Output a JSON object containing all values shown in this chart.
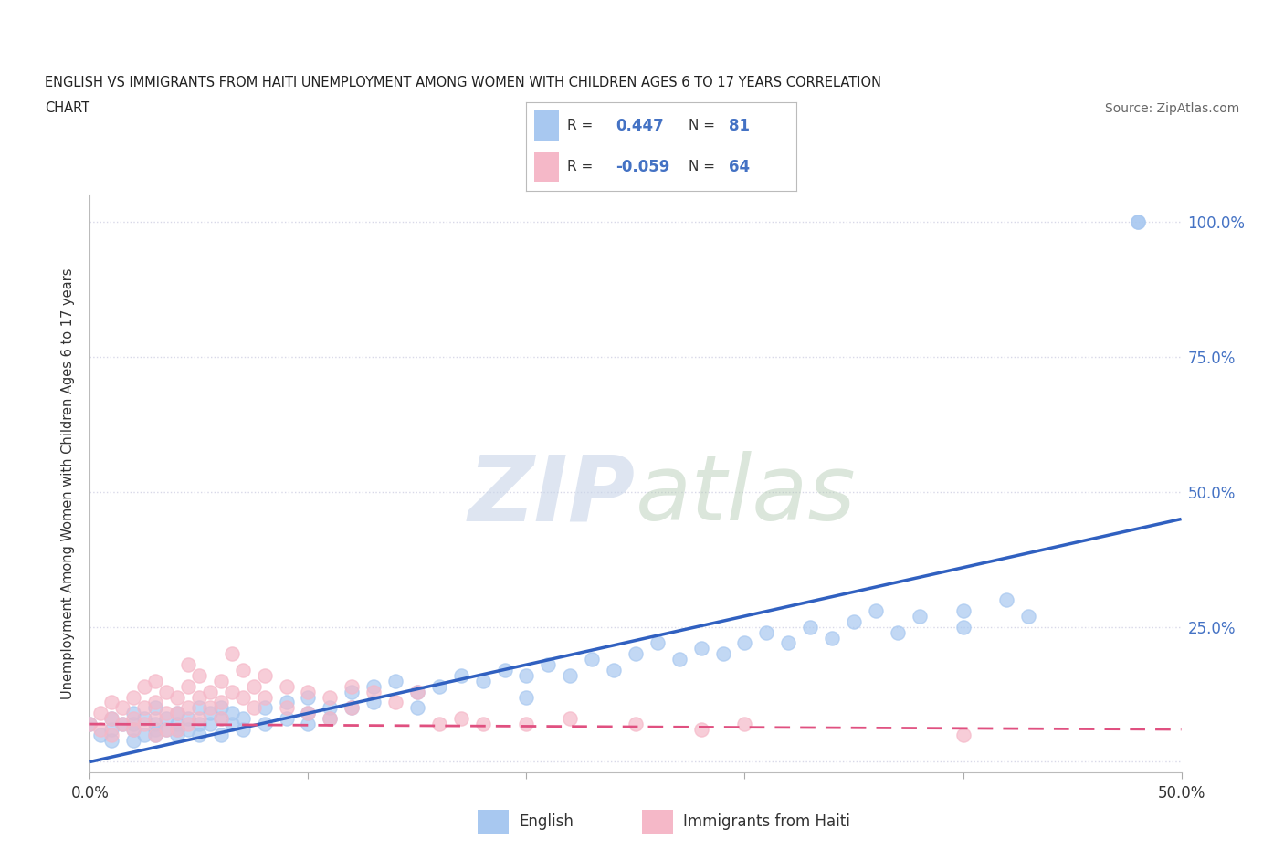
{
  "title_line1": "ENGLISH VS IMMIGRANTS FROM HAITI UNEMPLOYMENT AMONG WOMEN WITH CHILDREN AGES 6 TO 17 YEARS CORRELATION",
  "title_line2": "CHART",
  "source": "Source: ZipAtlas.com",
  "ylabel": "Unemployment Among Women with Children Ages 6 to 17 years",
  "xlim": [
    0.0,
    0.5
  ],
  "ylim": [
    -0.02,
    1.05
  ],
  "ytick_positions": [
    0.0,
    0.25,
    0.5,
    0.75,
    1.0
  ],
  "ytick_labels": [
    "",
    "25.0%",
    "50.0%",
    "75.0%",
    "100.0%"
  ],
  "english_color": "#a8c8f0",
  "haiti_color": "#f5b8c8",
  "english_line_color": "#3060c0",
  "haiti_line_color": "#e05080",
  "haiti_line_dash": [
    6,
    4
  ],
  "watermark_zip": "ZIP",
  "watermark_atlas": "atlas",
  "background_color": "#ffffff",
  "grid_color": "#d8d8e8",
  "english_scatter": [
    [
      0.0,
      0.07
    ],
    [
      0.005,
      0.05
    ],
    [
      0.01,
      0.06
    ],
    [
      0.01,
      0.08
    ],
    [
      0.01,
      0.04
    ],
    [
      0.015,
      0.07
    ],
    [
      0.02,
      0.09
    ],
    [
      0.02,
      0.06
    ],
    [
      0.02,
      0.04
    ],
    [
      0.02,
      0.07
    ],
    [
      0.025,
      0.08
    ],
    [
      0.025,
      0.05
    ],
    [
      0.03,
      0.1
    ],
    [
      0.03,
      0.07
    ],
    [
      0.03,
      0.05
    ],
    [
      0.03,
      0.06
    ],
    [
      0.035,
      0.08
    ],
    [
      0.035,
      0.06
    ],
    [
      0.04,
      0.09
    ],
    [
      0.04,
      0.07
    ],
    [
      0.04,
      0.05
    ],
    [
      0.04,
      0.06
    ],
    [
      0.045,
      0.08
    ],
    [
      0.045,
      0.06
    ],
    [
      0.05,
      0.1
    ],
    [
      0.05,
      0.07
    ],
    [
      0.05,
      0.05
    ],
    [
      0.055,
      0.09
    ],
    [
      0.055,
      0.07
    ],
    [
      0.06,
      0.1
    ],
    [
      0.06,
      0.08
    ],
    [
      0.06,
      0.05
    ],
    [
      0.065,
      0.09
    ],
    [
      0.065,
      0.07
    ],
    [
      0.07,
      0.08
    ],
    [
      0.07,
      0.06
    ],
    [
      0.08,
      0.1
    ],
    [
      0.08,
      0.07
    ],
    [
      0.09,
      0.11
    ],
    [
      0.09,
      0.08
    ],
    [
      0.1,
      0.12
    ],
    [
      0.1,
      0.09
    ],
    [
      0.1,
      0.07
    ],
    [
      0.11,
      0.1
    ],
    [
      0.11,
      0.08
    ],
    [
      0.12,
      0.13
    ],
    [
      0.12,
      0.1
    ],
    [
      0.13,
      0.14
    ],
    [
      0.13,
      0.11
    ],
    [
      0.14,
      0.15
    ],
    [
      0.15,
      0.13
    ],
    [
      0.15,
      0.1
    ],
    [
      0.16,
      0.14
    ],
    [
      0.17,
      0.16
    ],
    [
      0.18,
      0.15
    ],
    [
      0.19,
      0.17
    ],
    [
      0.2,
      0.16
    ],
    [
      0.2,
      0.12
    ],
    [
      0.21,
      0.18
    ],
    [
      0.22,
      0.16
    ],
    [
      0.23,
      0.19
    ],
    [
      0.24,
      0.17
    ],
    [
      0.25,
      0.2
    ],
    [
      0.26,
      0.22
    ],
    [
      0.27,
      0.19
    ],
    [
      0.28,
      0.21
    ],
    [
      0.29,
      0.2
    ],
    [
      0.3,
      0.22
    ],
    [
      0.31,
      0.24
    ],
    [
      0.32,
      0.22
    ],
    [
      0.33,
      0.25
    ],
    [
      0.34,
      0.23
    ],
    [
      0.35,
      0.26
    ],
    [
      0.36,
      0.28
    ],
    [
      0.37,
      0.24
    ],
    [
      0.38,
      0.27
    ],
    [
      0.4,
      0.28
    ],
    [
      0.4,
      0.25
    ],
    [
      0.42,
      0.3
    ],
    [
      0.43,
      0.27
    ],
    [
      0.48,
      1.0
    ],
    [
      0.48,
      1.0
    ]
  ],
  "haiti_scatter": [
    [
      0.0,
      0.07
    ],
    [
      0.005,
      0.06
    ],
    [
      0.005,
      0.09
    ],
    [
      0.01,
      0.08
    ],
    [
      0.01,
      0.11
    ],
    [
      0.01,
      0.05
    ],
    [
      0.015,
      0.1
    ],
    [
      0.015,
      0.07
    ],
    [
      0.02,
      0.12
    ],
    [
      0.02,
      0.08
    ],
    [
      0.02,
      0.06
    ],
    [
      0.025,
      0.14
    ],
    [
      0.025,
      0.1
    ],
    [
      0.025,
      0.07
    ],
    [
      0.03,
      0.15
    ],
    [
      0.03,
      0.11
    ],
    [
      0.03,
      0.08
    ],
    [
      0.03,
      0.05
    ],
    [
      0.035,
      0.13
    ],
    [
      0.035,
      0.09
    ],
    [
      0.035,
      0.06
    ],
    [
      0.04,
      0.12
    ],
    [
      0.04,
      0.09
    ],
    [
      0.04,
      0.06
    ],
    [
      0.045,
      0.18
    ],
    [
      0.045,
      0.14
    ],
    [
      0.045,
      0.1
    ],
    [
      0.045,
      0.07
    ],
    [
      0.05,
      0.16
    ],
    [
      0.05,
      0.12
    ],
    [
      0.05,
      0.08
    ],
    [
      0.055,
      0.13
    ],
    [
      0.055,
      0.1
    ],
    [
      0.06,
      0.15
    ],
    [
      0.06,
      0.11
    ],
    [
      0.06,
      0.08
    ],
    [
      0.065,
      0.2
    ],
    [
      0.065,
      0.13
    ],
    [
      0.07,
      0.17
    ],
    [
      0.07,
      0.12
    ],
    [
      0.075,
      0.14
    ],
    [
      0.075,
      0.1
    ],
    [
      0.08,
      0.16
    ],
    [
      0.08,
      0.12
    ],
    [
      0.09,
      0.14
    ],
    [
      0.09,
      0.1
    ],
    [
      0.1,
      0.13
    ],
    [
      0.1,
      0.09
    ],
    [
      0.11,
      0.12
    ],
    [
      0.11,
      0.08
    ],
    [
      0.12,
      0.14
    ],
    [
      0.12,
      0.1
    ],
    [
      0.13,
      0.13
    ],
    [
      0.14,
      0.11
    ],
    [
      0.15,
      0.13
    ],
    [
      0.16,
      0.07
    ],
    [
      0.17,
      0.08
    ],
    [
      0.18,
      0.07
    ],
    [
      0.2,
      0.07
    ],
    [
      0.22,
      0.08
    ],
    [
      0.25,
      0.07
    ],
    [
      0.28,
      0.06
    ],
    [
      0.3,
      0.07
    ],
    [
      0.4,
      0.05
    ]
  ],
  "eng_line_x": [
    0.0,
    0.5
  ],
  "eng_line_y": [
    0.0,
    0.45
  ],
  "hai_line_x": [
    0.0,
    0.5
  ],
  "hai_line_y": [
    0.07,
    0.06
  ]
}
